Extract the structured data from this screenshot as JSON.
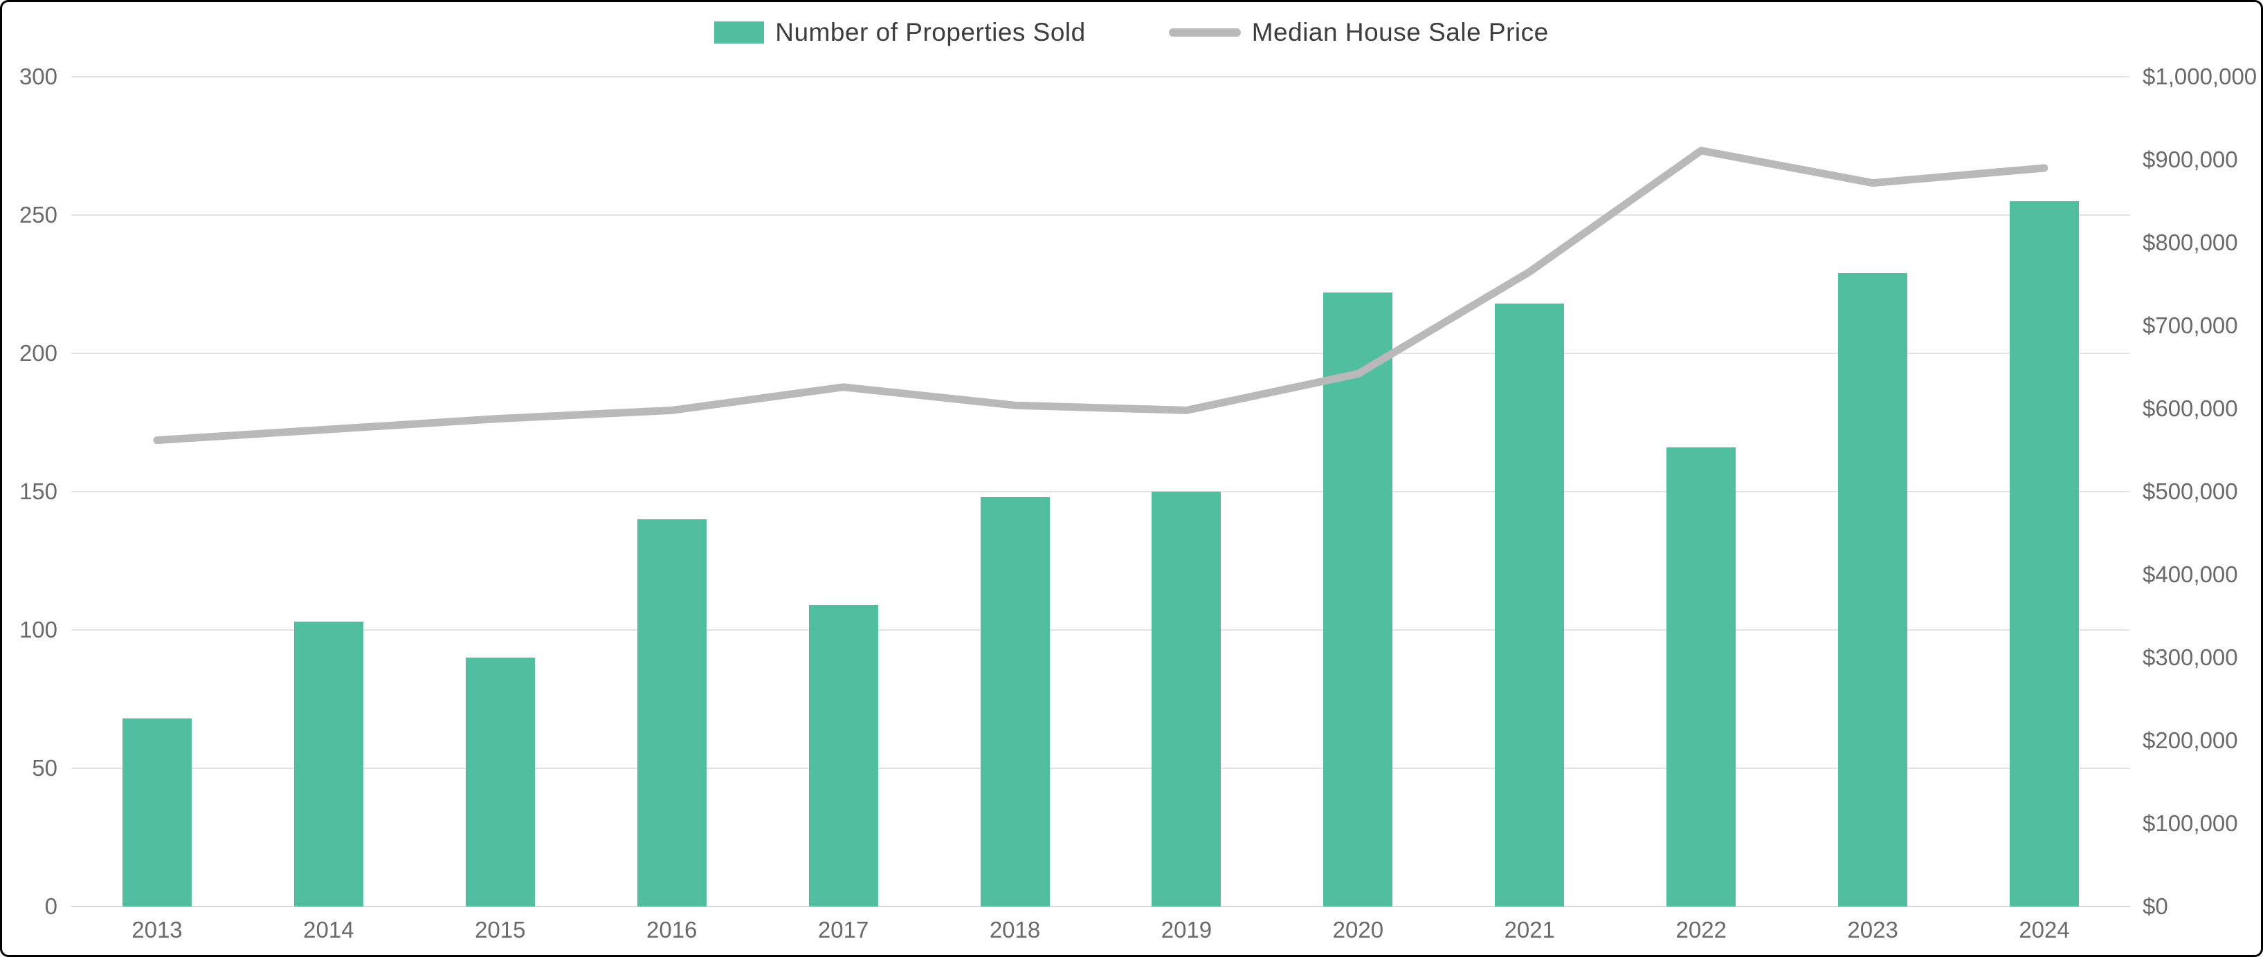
{
  "legend": {
    "bar_label": "Number of Properties Sold",
    "line_label": "Median House Sale Price"
  },
  "colors": {
    "bar": "#52BEA0",
    "line": "#B9B9B9",
    "gridline": "#E4E4E4",
    "zero_line": "#D9D9D9",
    "tick_text": "#6A6A6A",
    "legend_text": "#3D3D3D",
    "background": "#FFFFFF"
  },
  "chart_data": {
    "type": "bar+line combo",
    "title": "",
    "categories": [
      "2013",
      "2014",
      "2015",
      "2016",
      "2017",
      "2018",
      "2019",
      "2020",
      "2021",
      "2022",
      "2023",
      "2024"
    ],
    "series": [
      {
        "name": "Number of Properties Sold",
        "type": "bar",
        "axis": "left",
        "values": [
          68,
          103,
          90,
          140,
          109,
          148,
          150,
          222,
          218,
          166,
          229,
          255
        ]
      },
      {
        "name": "Median House Sale Price",
        "type": "line",
        "axis": "right",
        "values": [
          562000,
          575000,
          588000,
          598000,
          626000,
          604000,
          598000,
          642000,
          765000,
          911000,
          872000,
          890000
        ]
      }
    ],
    "left_axis": {
      "min": 0,
      "max": 300,
      "step": 50,
      "tick_labels": [
        "0",
        "50",
        "100",
        "150",
        "200",
        "250",
        "300"
      ]
    },
    "right_axis": {
      "min": 0,
      "max": 1000000,
      "step": 100000,
      "tick_labels": [
        "$0",
        "$100,000",
        "$200,000",
        "$300,000",
        "$400,000",
        "$500,000",
        "$600,000",
        "$700,000",
        "$800,000",
        "$900,000",
        "$1,000,000"
      ]
    },
    "grid": "horizontal gridlines at left-axis ticks only",
    "legend_position": "top-center"
  }
}
